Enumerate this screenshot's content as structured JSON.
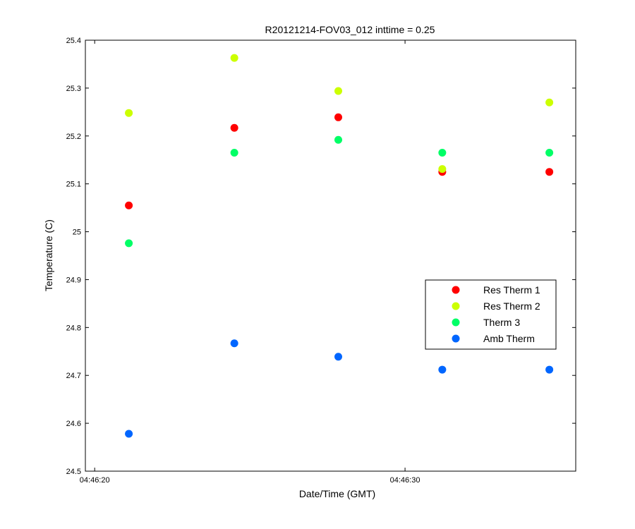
{
  "chart_data": {
    "type": "scatter",
    "title": "R20121214-FOV03_012 inttime = 0.25",
    "xlabel": "Date/Time (GMT)",
    "ylabel": "Temperature (C)",
    "x_unit": "seconds after 04:46:20 GMT",
    "xlim": [
      -0.3,
      15.5
    ],
    "ylim": [
      24.5,
      25.4
    ],
    "x_ticks": [
      {
        "value": 0,
        "label": "04:46:20"
      },
      {
        "value": 10,
        "label": "04:46:30"
      }
    ],
    "y_ticks": [
      {
        "value": 24.5,
        "label": "24.5"
      },
      {
        "value": 24.6,
        "label": "24.6"
      },
      {
        "value": 24.7,
        "label": "24.7"
      },
      {
        "value": 24.8,
        "label": "24.8"
      },
      {
        "value": 24.9,
        "label": "24.9"
      },
      {
        "value": 25.0,
        "label": "25"
      },
      {
        "value": 25.1,
        "label": "25.1"
      },
      {
        "value": 25.2,
        "label": "25.2"
      },
      {
        "value": 25.3,
        "label": "25.3"
      },
      {
        "value": 25.4,
        "label": "25.4"
      }
    ],
    "x": [
      1.1,
      4.5,
      7.85,
      11.2,
      14.65
    ],
    "series": [
      {
        "name": "Res Therm 1",
        "color": "#ff0000",
        "values": [
          25.055,
          25.217,
          25.239,
          25.125,
          25.125
        ]
      },
      {
        "name": "Res Therm 2",
        "color": "#ccff00",
        "values": [
          25.248,
          25.363,
          25.294,
          25.131,
          25.27
        ]
      },
      {
        "name": "Therm 3",
        "color": "#00ff66",
        "values": [
          24.976,
          25.165,
          25.192,
          25.165,
          25.165
        ]
      },
      {
        "name": "Amb Therm",
        "color": "#0066ff",
        "values": [
          24.578,
          24.767,
          24.739,
          24.712,
          24.712
        ]
      }
    ],
    "grid": false,
    "legend_position": "right"
  }
}
